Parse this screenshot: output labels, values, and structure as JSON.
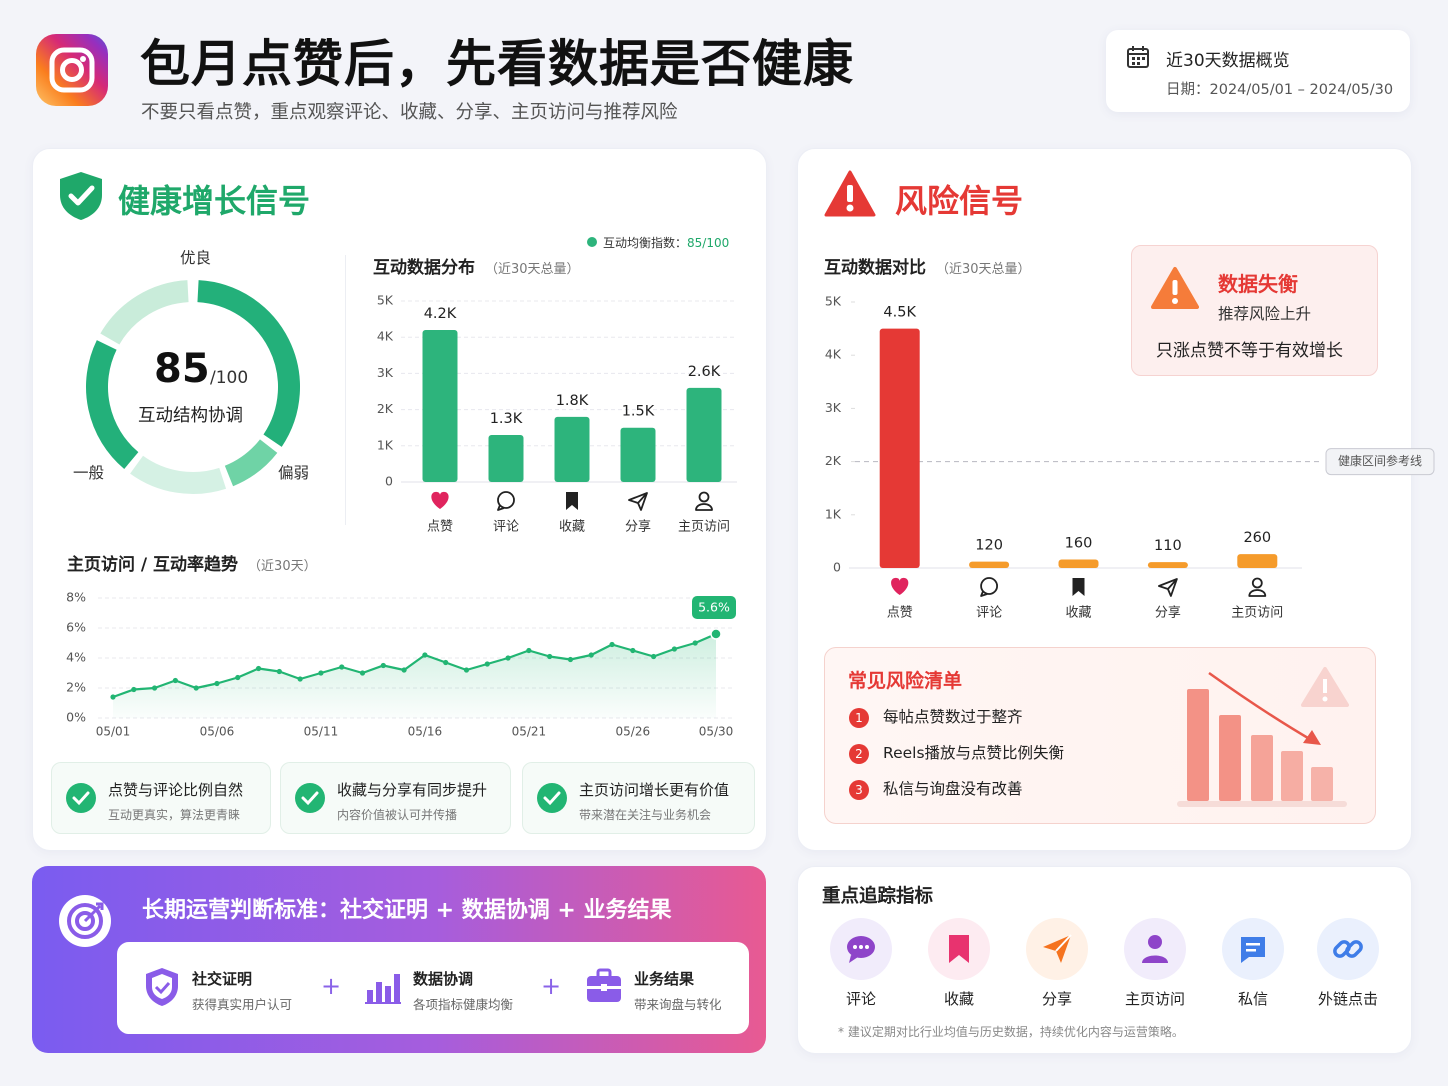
{
  "header": {
    "title": "包月点赞后，先看数据是否健康",
    "subtitle": "不要只看点赞，重点观察评论、收藏、分享、主页访问与推荐风险",
    "period_title": "近30天数据概览",
    "period_dates": "日期：2024/05/01 – 2024/05/30"
  },
  "health": {
    "title": "健康增长信号",
    "gauge": {
      "score": 85,
      "max_label": "/100",
      "caption": "互动结构协调",
      "zone_labels": [
        "优良",
        "一般",
        "偏弱"
      ]
    },
    "checks": [
      {
        "title": "点赞与评论比例自然",
        "desc": "互动更真实，算法更青睐"
      },
      {
        "title": "收藏与分享有同步提升",
        "desc": "内容价值被认可并传播"
      },
      {
        "title": "主页访问增长更有价值",
        "desc": "带来潜在关注与业务机会"
      }
    ]
  },
  "risk": {
    "title": "风险信号",
    "alert": {
      "title": "数据失衡",
      "subtitle": "推荐风险上升",
      "text": "只涨点赞不等于有效增长"
    },
    "list_title": "常见风险清单",
    "list": [
      {
        "no": 1,
        "text": "每帖点赞数过于整齐"
      },
      {
        "no": 2,
        "text": "Reels播放与点赞比例失衡"
      },
      {
        "no": 3,
        "text": "私信与询盘没有改善"
      }
    ]
  },
  "standard": {
    "title": "长期运营判断标准：社交证明 + 数据协调 + 业务结果",
    "joiner": "+",
    "items": [
      {
        "title": "社交证明",
        "desc": "获得真实用户认可"
      },
      {
        "title": "数据协调",
        "desc": "各项指标健康均衡"
      },
      {
        "title": "业务结果",
        "desc": "带来询盘与转化"
      }
    ]
  },
  "tracking": {
    "title": "重点追踪指标",
    "items": [
      "评论",
      "收藏",
      "分享",
      "主页访问",
      "私信",
      "外链点击"
    ],
    "note": "* 建议定期对比行业均值与历史数据，持续优化内容与运营策略。"
  },
  "chart_data": [
    {
      "type": "bar",
      "title": "互动数据分布",
      "subtitle": "（近30天总量）",
      "legend_label": "互动均衡指数：",
      "legend_value": "85/100",
      "categories": [
        "点赞",
        "评论",
        "收藏",
        "分享",
        "主页访问"
      ],
      "values": [
        4200,
        1300,
        1800,
        1500,
        2600
      ],
      "value_labels": [
        "4.2K",
        "1.3K",
        "1.8K",
        "1.5K",
        "2.6K"
      ],
      "color": "#2db47c",
      "ylim": [
        0,
        5000
      ],
      "yticks": [
        0,
        {
          "value": 1000,
          "label": "1K"
        },
        {
          "value": 2000,
          "label": "2K"
        },
        {
          "value": 3000,
          "label": "3K"
        },
        {
          "value": 4000,
          "label": "4K"
        },
        {
          "value": 5000,
          "label": "5K"
        }
      ],
      "grid": true
    },
    {
      "type": "line",
      "title": "主页访问 / 互动率趋势",
      "subtitle": "（近30天）",
      "categories": [
        "05/01",
        null,
        null,
        null,
        null,
        "05/06",
        null,
        null,
        null,
        null,
        "05/11",
        null,
        null,
        null,
        null,
        "05/16",
        null,
        null,
        null,
        null,
        "05/21",
        null,
        null,
        null,
        null,
        "05/26",
        null,
        null,
        null,
        "05/30"
      ],
      "values": [
        1.4,
        1.9,
        2.0,
        2.5,
        2.0,
        2.3,
        2.7,
        3.3,
        3.1,
        2.6,
        3.0,
        3.4,
        3.0,
        3.5,
        3.2,
        4.2,
        3.7,
        3.2,
        3.6,
        4.0,
        4.5,
        4.1,
        3.9,
        4.2,
        4.9,
        4.5,
        4.1,
        4.6,
        5.0,
        5.6
      ],
      "value_labels": [
        null,
        null,
        null,
        null,
        null,
        null,
        null,
        null,
        null,
        null,
        null,
        null,
        null,
        null,
        null,
        null,
        null,
        null,
        null,
        null,
        null,
        null,
        null,
        null,
        null,
        null,
        null,
        null,
        null,
        "5.6%"
      ],
      "color": "#22b573",
      "ylim": [
        0,
        8
      ],
      "yticks": [
        {
          "value": 0,
          "label": "0%"
        },
        {
          "value": 2,
          "label": "2%"
        },
        {
          "value": 4,
          "label": "4%"
        },
        {
          "value": 6,
          "label": "6%"
        },
        {
          "value": 8,
          "label": "8%"
        }
      ],
      "grid": true
    },
    {
      "type": "bar",
      "title": "互动数据对比",
      "subtitle": "（近30天总量）",
      "categories": [
        "点赞",
        "评论",
        "收藏",
        "分享",
        "主页访问"
      ],
      "values": [
        4500,
        120,
        160,
        110,
        260
      ],
      "value_labels": [
        "4.5K",
        "120",
        "160",
        "110",
        "260"
      ],
      "colors": [
        "#e53935",
        "#f59b2b",
        "#f59b2b",
        "#f59b2b",
        "#f59b2b"
      ],
      "ylim": [
        0,
        5000
      ],
      "yticks": [
        0,
        {
          "value": 1000,
          "label": "1K"
        },
        {
          "value": 2000,
          "label": "2K"
        },
        {
          "value": 3000,
          "label": "3K"
        },
        {
          "value": 4000,
          "label": "4K"
        },
        {
          "value": 5000,
          "label": "5K"
        }
      ],
      "grid": false,
      "reference_line": {
        "value": 2000,
        "label": "健康区间参考线"
      }
    }
  ]
}
